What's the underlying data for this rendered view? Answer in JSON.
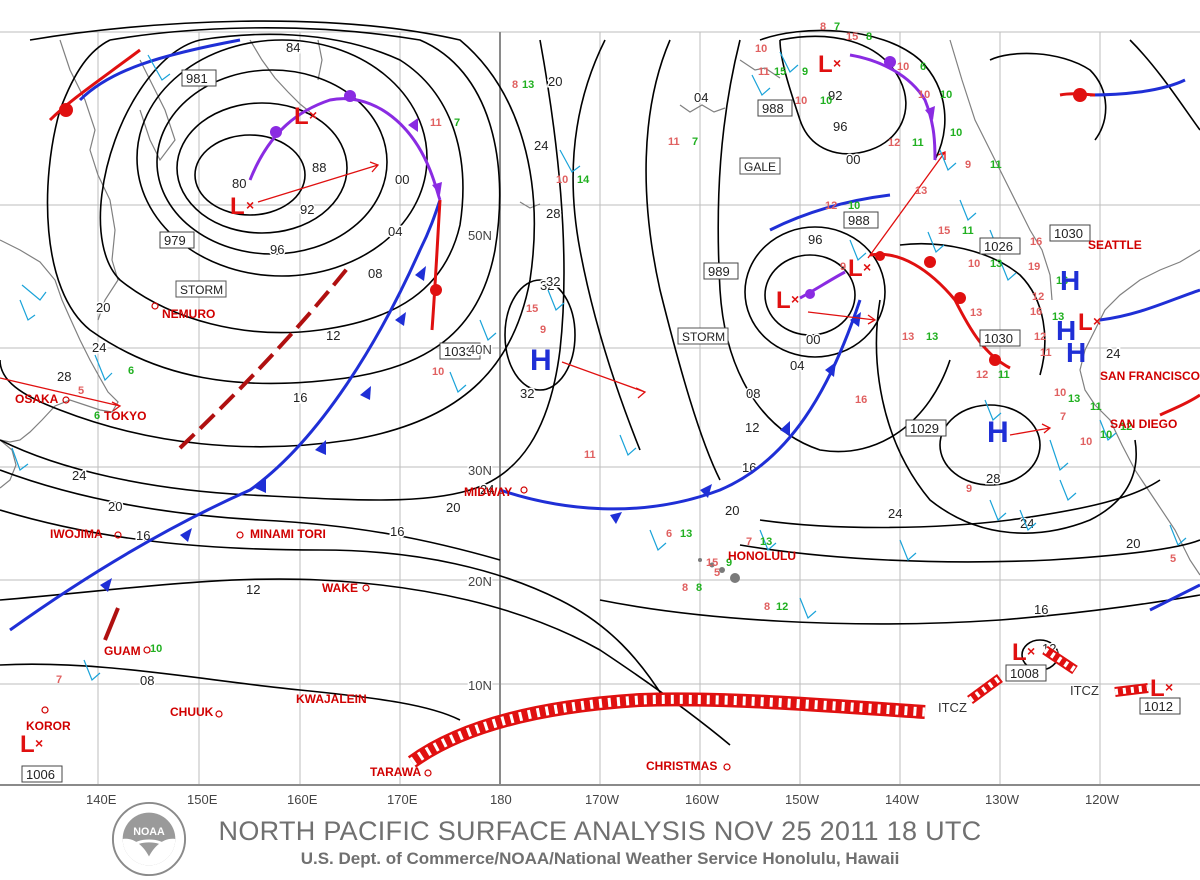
{
  "title": "NORTH PACIFIC SURFACE ANALYSIS NOV 25 2011 18 UTC",
  "subtitle": "U.S. Dept. of Commerce/NOAA/National Weather Service Honolulu, Hawaii",
  "logo_text": "NOAA",
  "longitude_labels": [
    "140E",
    "150E",
    "160E",
    "170E",
    "180",
    "170W",
    "160W",
    "150W",
    "140W",
    "130W",
    "120W"
  ],
  "latitude_labels": [
    "50N",
    "40N",
    "30N",
    "20N",
    "10N"
  ],
  "pressure_centers": [
    {
      "type": "L",
      "value": "979"
    },
    {
      "type": "L",
      "value": "981"
    },
    {
      "type": "L",
      "value": "988"
    },
    {
      "type": "L",
      "value": "988"
    },
    {
      "type": "L",
      "value": "989"
    },
    {
      "type": "L",
      "value": "1008"
    },
    {
      "type": "L",
      "value": "1012"
    },
    {
      "type": "L",
      "value": "1006"
    },
    {
      "type": "H",
      "value": "1033"
    },
    {
      "type": "H",
      "value": "1029"
    },
    {
      "type": "H",
      "value": "1030"
    },
    {
      "type": "H",
      "value": "1026"
    },
    {
      "type": "H",
      "value": "1030"
    }
  ],
  "warnings": [
    "STORM",
    "STORM",
    "GALE"
  ],
  "stations": [
    "NEMURO",
    "OSAKA",
    "TOKYO",
    "IWOJIMA",
    "MINAMI TORI",
    "WAKE",
    "GUAM",
    "KOROR",
    "CHUUK",
    "KWAJALEIN",
    "TARAWA",
    "MIDWAY",
    "HONOLULU",
    "CHRISTMAS",
    "SEATTLE",
    "SAN FRANCISCO",
    "SAN DIEGO"
  ],
  "isobar_labels": [
    "84",
    "80",
    "88",
    "92",
    "96",
    "00",
    "04",
    "08",
    "12",
    "16",
    "20",
    "24",
    "28",
    "32"
  ],
  "itcz_label": "ITCZ",
  "colors": {
    "isobar": "#000000",
    "cold_front": "#1f2fd6",
    "warm_front": "#e01010",
    "occluded_front": "#8a2be2",
    "station_label": "#d00000",
    "wind_barb": "#1aa3d9",
    "footer_text": "#707070"
  }
}
